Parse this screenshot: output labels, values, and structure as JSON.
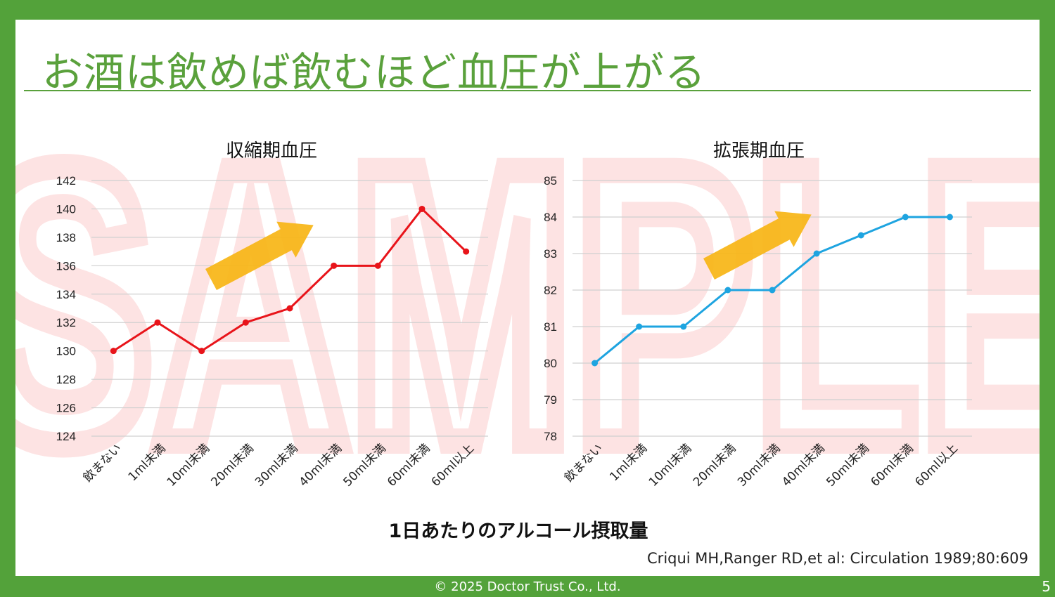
{
  "slide": {
    "title": "お酒は飲めば飲むほど血圧が上がる",
    "watermark": "SAMPLE",
    "xaxis_title": "1日あたりのアルコール摂取量",
    "citation": "Criqui MH,Ranger RD,et al: Circulation 1989;80:609",
    "footer": "© 2025 Doctor Trust Co., Ltd.",
    "page_number": "5"
  },
  "colors": {
    "frame": "#53a23a",
    "title": "#5aa13c",
    "systolic_line": "#e8141a",
    "diastolic_line": "#1ea4e0",
    "arrow": "#f7b515",
    "watermark": "#fde8e8"
  },
  "chart_data": [
    {
      "type": "line",
      "title": "収縮期血圧",
      "categories": [
        "飲まない",
        "1ml未満",
        "10ml未満",
        "20ml未満",
        "30ml未満",
        "40ml未満",
        "50ml未満",
        "60ml未満",
        "60ml以上"
      ],
      "values": [
        130,
        132,
        130,
        132,
        133,
        136,
        136,
        140,
        137
      ],
      "ylim": [
        124,
        142
      ],
      "yticks": [
        124,
        126,
        128,
        130,
        132,
        134,
        136,
        138,
        140,
        142
      ],
      "grid": true,
      "trend_arrow": "up"
    },
    {
      "type": "line",
      "title": "拡張期血圧",
      "categories": [
        "飲まない",
        "1ml未満",
        "10ml未満",
        "20ml未満",
        "30ml未満",
        "40ml未満",
        "50ml未満",
        "60ml未満",
        "60ml以上"
      ],
      "values": [
        80,
        81,
        81,
        82,
        82,
        83,
        83.5,
        84,
        84
      ],
      "ylim": [
        78,
        85
      ],
      "yticks": [
        78,
        79,
        80,
        81,
        82,
        83,
        84,
        85
      ],
      "grid": true,
      "trend_arrow": "up"
    }
  ]
}
